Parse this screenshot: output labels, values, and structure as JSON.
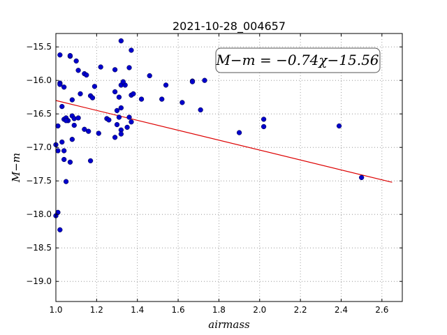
{
  "chart_data": {
    "type": "scatter",
    "title": "2021-10-28_004657",
    "xlabel": "airmass",
    "ylabel": "M−m",
    "annotation": "M−m = −0.74χ−15.56",
    "xlim": [
      1.0,
      2.7
    ],
    "ylim": [
      -19.3,
      -15.3
    ],
    "y_inverted": true,
    "grid": true,
    "x_ticks": [
      "1.0",
      "1.2",
      "1.4",
      "1.6",
      "1.8",
      "2.0",
      "2.2",
      "2.4",
      "2.6"
    ],
    "y_ticks": [
      "−15.5",
      "−16.0",
      "−16.5",
      "−17.0",
      "−17.5",
      "−18.0",
      "−18.5",
      "−19.0"
    ],
    "points_color": "#0000cc",
    "fit_color": "#dd0000",
    "fit": {
      "slope": -0.74,
      "intercept": -15.56,
      "x_range": [
        1.0,
        2.65
      ]
    },
    "points": [
      {
        "x": 1.02,
        "y": -15.62
      },
      {
        "x": 1.07,
        "y": -15.64
      },
      {
        "x": 1.07,
        "y": -15.63
      },
      {
        "x": 1.1,
        "y": -15.71
      },
      {
        "x": 1.32,
        "y": -15.41
      },
      {
        "x": 1.37,
        "y": -15.55
      },
      {
        "x": 1.36,
        "y": -15.81
      },
      {
        "x": 1.22,
        "y": -15.8
      },
      {
        "x": 1.11,
        "y": -15.85
      },
      {
        "x": 1.29,
        "y": -15.84
      },
      {
        "x": 1.14,
        "y": -15.9
      },
      {
        "x": 1.15,
        "y": -15.92
      },
      {
        "x": 1.46,
        "y": -15.93
      },
      {
        "x": 1.02,
        "y": -16.04
      },
      {
        "x": 1.02,
        "y": -16.06
      },
      {
        "x": 1.04,
        "y": -16.1
      },
      {
        "x": 1.19,
        "y": -16.09
      },
      {
        "x": 1.32,
        "y": -16.07
      },
      {
        "x": 1.34,
        "y": -16.07
      },
      {
        "x": 1.33,
        "y": -16.02
      },
      {
        "x": 1.54,
        "y": -16.07
      },
      {
        "x": 1.67,
        "y": -16.01
      },
      {
        "x": 1.67,
        "y": -16.02
      },
      {
        "x": 1.73,
        "y": -16.0
      },
      {
        "x": 1.12,
        "y": -16.2
      },
      {
        "x": 1.17,
        "y": -16.23
      },
      {
        "x": 1.18,
        "y": -16.26
      },
      {
        "x": 1.29,
        "y": -16.17
      },
      {
        "x": 1.31,
        "y": -16.25
      },
      {
        "x": 1.37,
        "y": -16.22
      },
      {
        "x": 1.38,
        "y": -16.2
      },
      {
        "x": 1.42,
        "y": -16.28
      },
      {
        "x": 1.52,
        "y": -16.28
      },
      {
        "x": 1.62,
        "y": -16.33
      },
      {
        "x": 1.08,
        "y": -16.29
      },
      {
        "x": 1.03,
        "y": -16.39
      },
      {
        "x": 1.32,
        "y": -16.41
      },
      {
        "x": 1.3,
        "y": -16.45
      },
      {
        "x": 1.71,
        "y": -16.44
      },
      {
        "x": 1.08,
        "y": -16.53
      },
      {
        "x": 1.09,
        "y": -16.57
      },
      {
        "x": 1.11,
        "y": -16.56
      },
      {
        "x": 1.04,
        "y": -16.58
      },
      {
        "x": 1.05,
        "y": -16.56
      },
      {
        "x": 1.06,
        "y": -16.6
      },
      {
        "x": 1.05,
        "y": -16.6
      },
      {
        "x": 1.25,
        "y": -16.57
      },
      {
        "x": 1.26,
        "y": -16.59
      },
      {
        "x": 1.31,
        "y": -16.55
      },
      {
        "x": 1.36,
        "y": -16.55
      },
      {
        "x": 1.37,
        "y": -16.62
      },
      {
        "x": 2.02,
        "y": -16.58
      },
      {
        "x": 1.01,
        "y": -16.68
      },
      {
        "x": 1.09,
        "y": -16.67
      },
      {
        "x": 1.3,
        "y": -16.66
      },
      {
        "x": 1.35,
        "y": -16.7
      },
      {
        "x": 1.14,
        "y": -16.73
      },
      {
        "x": 1.16,
        "y": -16.76
      },
      {
        "x": 1.21,
        "y": -16.79
      },
      {
        "x": 1.32,
        "y": -16.74
      },
      {
        "x": 1.32,
        "y": -16.8
      },
      {
        "x": 1.29,
        "y": -16.85
      },
      {
        "x": 2.02,
        "y": -16.69
      },
      {
        "x": 2.39,
        "y": -16.68
      },
      {
        "x": 1.9,
        "y": -16.78
      },
      {
        "x": 1.08,
        "y": -16.88
      },
      {
        "x": 1.03,
        "y": -16.92
      },
      {
        "x": 1.0,
        "y": -16.96
      },
      {
        "x": 1.01,
        "y": -17.05
      },
      {
        "x": 1.04,
        "y": -17.05
      },
      {
        "x": 1.04,
        "y": -17.18
      },
      {
        "x": 1.07,
        "y": -17.22
      },
      {
        "x": 1.17,
        "y": -17.2
      },
      {
        "x": 1.05,
        "y": -17.51
      },
      {
        "x": 2.5,
        "y": -17.45
      },
      {
        "x": 1.01,
        "y": -17.97
      },
      {
        "x": 1.0,
        "y": -18.02
      },
      {
        "x": 1.02,
        "y": -18.23
      }
    ]
  }
}
